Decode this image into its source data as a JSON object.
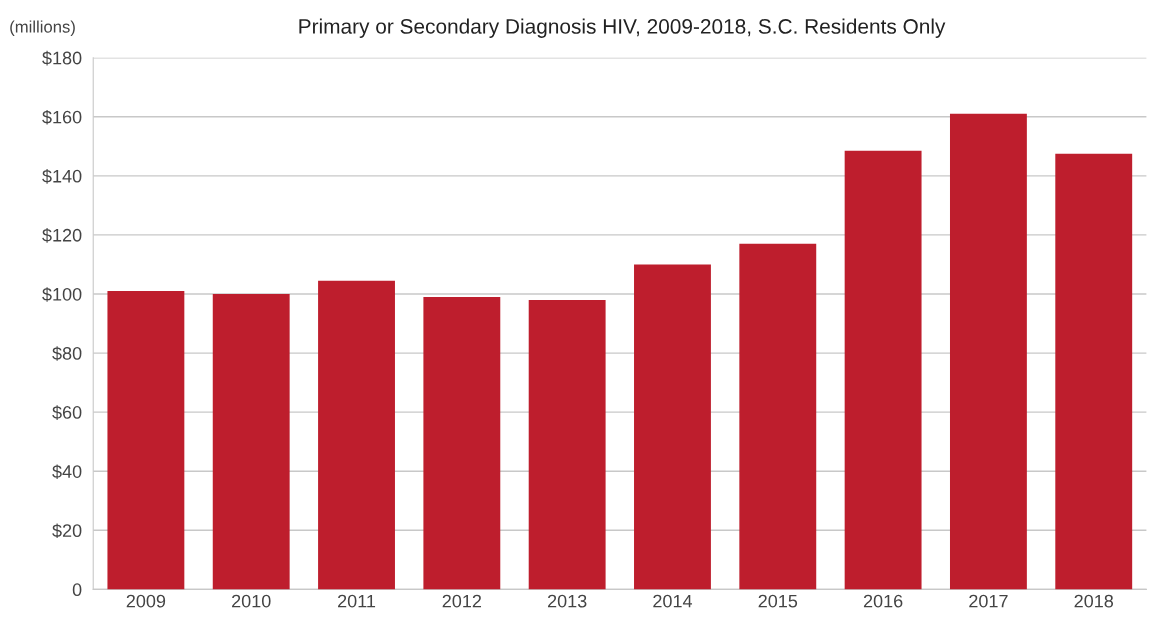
{
  "chart_data": {
    "type": "bar",
    "title": "Primary or Secondary Diagnosis HIV, 2009-2018, S.C. Residents Only",
    "ylabel": "(millions)",
    "categories": [
      "2009",
      "2010",
      "2011",
      "2012",
      "2013",
      "2014",
      "2015",
      "2016",
      "2017",
      "2018"
    ],
    "values": [
      101,
      100,
      104.5,
      99,
      98,
      110,
      117,
      148.5,
      161,
      147.5
    ],
    "color": "#be1e2d",
    "ylim": [
      0,
      180
    ],
    "yticks": [
      0,
      {
        "value": 20,
        "label": "$20"
      },
      {
        "value": 40,
        "label": "$40"
      },
      {
        "value": 60,
        "label": "$60"
      },
      {
        "value": 80,
        "label": "$80"
      },
      {
        "value": 100,
        "label": "$100"
      },
      {
        "value": 120,
        "label": "$120"
      },
      {
        "value": 140,
        "label": "$140"
      },
      {
        "value": 160,
        "label": "$160"
      },
      {
        "value": 180,
        "label": "$180"
      }
    ],
    "grid": "y"
  }
}
